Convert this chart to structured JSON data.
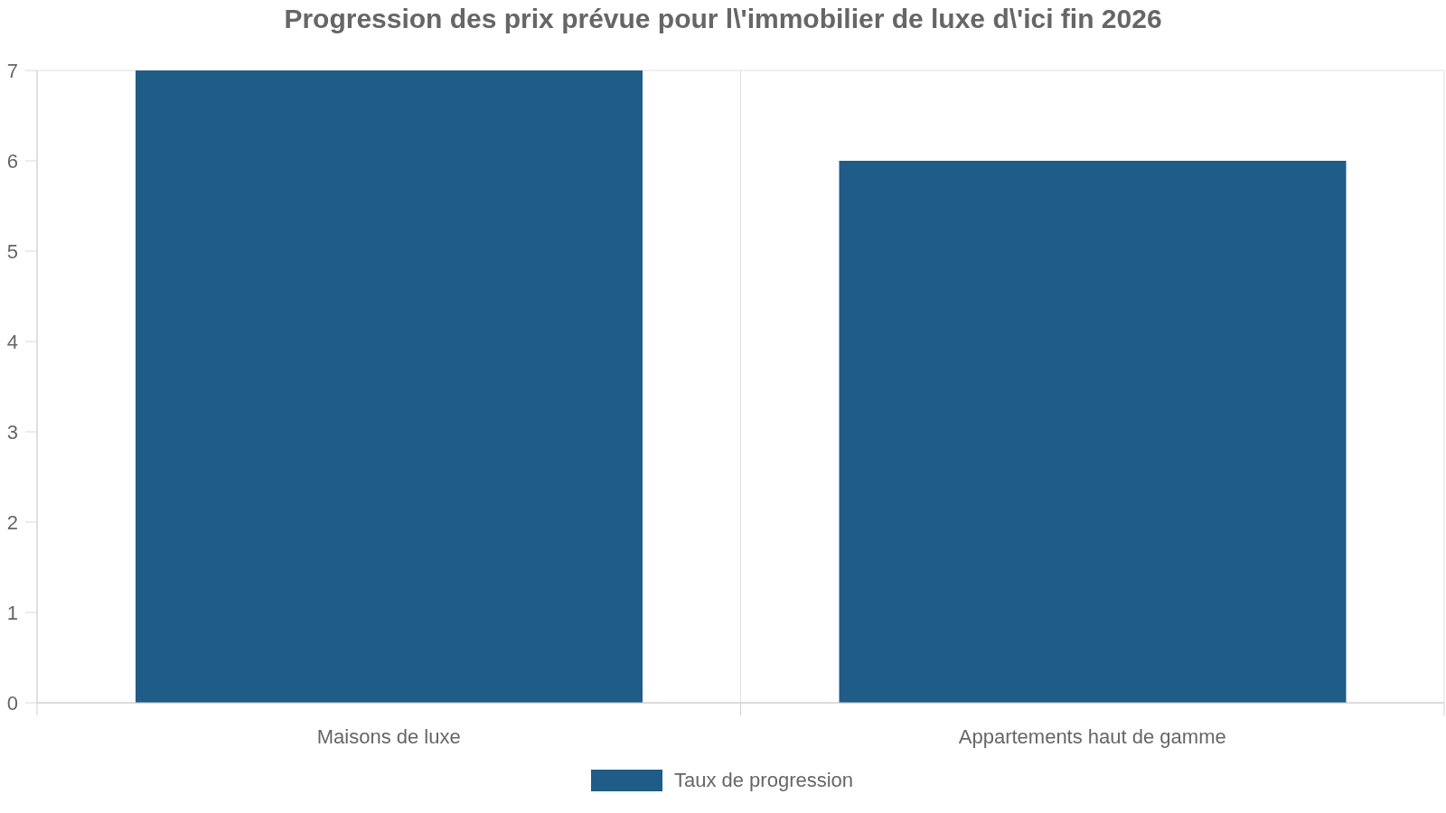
{
  "chart_data": {
    "type": "bar",
    "title": "Progression des prix prévue pour l\\'immobilier de luxe d\\'ici fin 2026",
    "categories": [
      "Maisons de luxe",
      "Appartements haut de gamme"
    ],
    "series": [
      {
        "name": "Taux de progression",
        "color": "#1f5c87",
        "values": [
          7,
          6
        ]
      }
    ],
    "ylim": [
      0,
      7
    ],
    "yticks": [
      0,
      1,
      2,
      3,
      4,
      5,
      6,
      7
    ],
    "grid": true,
    "legend": "bottom"
  }
}
